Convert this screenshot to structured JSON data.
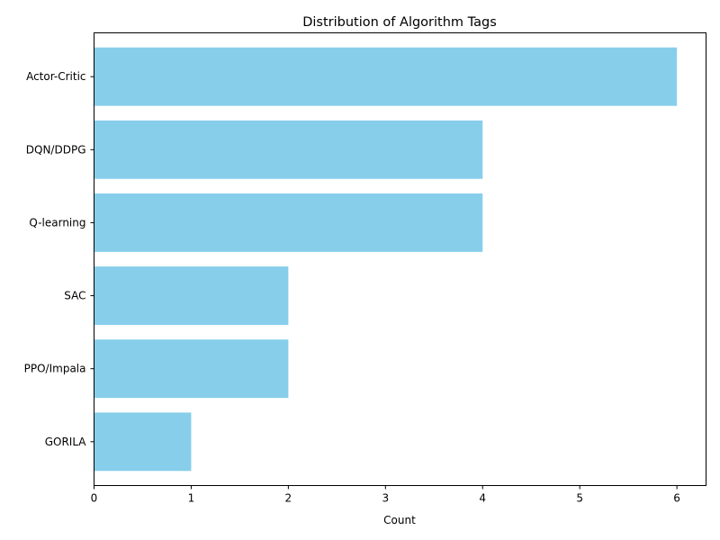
{
  "chart_data": {
    "type": "bar",
    "orientation": "horizontal",
    "title": "Distribution of Algorithm Tags",
    "xlabel": "Count",
    "ylabel": "",
    "categories": [
      "Actor-Critic",
      "DQN/DDPG",
      "Q-learning",
      "SAC",
      "PPO/Impala",
      "GORILA"
    ],
    "values": [
      6,
      4,
      4,
      2,
      2,
      1
    ],
    "xlim": [
      0,
      6.3
    ],
    "xticks": [
      0,
      1,
      2,
      3,
      4,
      5,
      6
    ],
    "bar_color": "#87ceeb",
    "grid": false,
    "legend": "none"
  }
}
